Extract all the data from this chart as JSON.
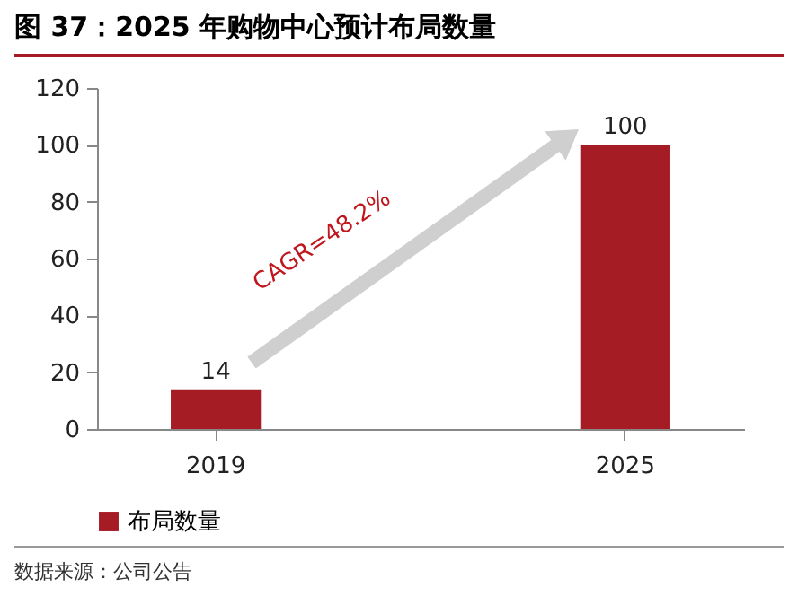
{
  "chart_data": {
    "type": "bar",
    "title": "图 37：2025 年购物中心预计布局数量",
    "categories": [
      "2019",
      "2025"
    ],
    "series": [
      {
        "name": "布局数量",
        "color": "#a51c24",
        "values": [
          14,
          100
        ]
      }
    ],
    "ylim": [
      0,
      120
    ],
    "yticks": [
      0,
      20,
      40,
      60,
      80,
      100,
      120
    ],
    "grid": false,
    "data_labels": true,
    "legend": "bottom",
    "annotations": [
      "CAGR=48.2%",
      "数据来源：公司公告"
    ]
  }
}
